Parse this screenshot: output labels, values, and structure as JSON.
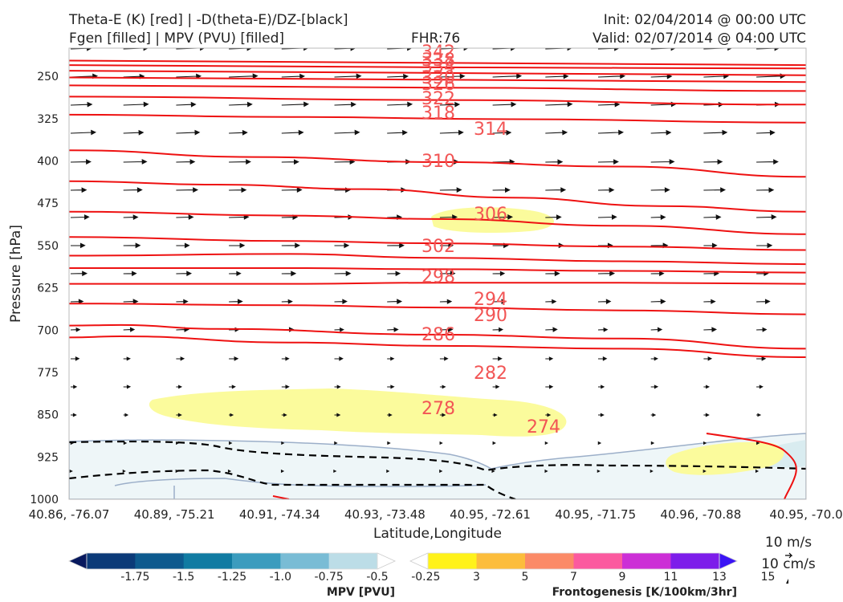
{
  "header": {
    "title_line1": "Theta-E (K) [red] | -D(theta-E)/DZ-[black]",
    "title_line2": "Fgen [filled] | MPV (PVU) [filled]",
    "fhr": "FHR:76",
    "init": "Init: 02/04/2014 @ 00:00 UTC",
    "valid": "Valid: 02/07/2014 @ 04:00 UTC"
  },
  "chart_data": {
    "type": "cross-section",
    "xlabel": "Latitude,Longitude",
    "ylabel": "Pressure [hPa]",
    "x_ticks": [
      "40.86, -76.07",
      "40.89, -75.21",
      "40.91, -74.34",
      "40.93, -73.48",
      "40.95, -72.61",
      "40.95, -71.75",
      "40.96, -70.88",
      "40.95, -70.0"
    ],
    "y_ticks": [
      250,
      325,
      400,
      475,
      550,
      625,
      700,
      775,
      850,
      925,
      1000
    ],
    "ylim": [
      200,
      1000
    ],
    "y_inverted": true,
    "grid": false,
    "theta_e_contours": [
      {
        "label": "314",
        "points": [
          [
            0,
            318
          ],
          [
            0.3,
            322
          ],
          [
            0.6,
            326
          ],
          [
            1,
            332
          ]
        ]
      },
      {
        "label": "310",
        "points": [
          [
            0,
            381
          ],
          [
            0.25,
            393
          ],
          [
            0.5,
            402
          ],
          [
            0.75,
            410
          ],
          [
            1,
            428
          ]
        ]
      },
      {
        "label": "306",
        "points": [
          [
            0,
            436
          ],
          [
            0.2,
            442
          ],
          [
            0.4,
            450
          ],
          [
            0.6,
            465
          ],
          [
            0.8,
            480
          ],
          [
            1,
            490
          ]
        ]
      },
      {
        "label": "302",
        "points": [
          [
            0,
            490
          ],
          [
            0.3,
            497
          ],
          [
            0.5,
            503
          ],
          [
            0.75,
            515
          ],
          [
            1,
            530
          ]
        ]
      },
      {
        "label": "298",
        "points": [
          [
            0,
            535
          ],
          [
            0.3,
            542
          ],
          [
            0.5,
            546
          ],
          [
            0.75,
            552
          ],
          [
            1,
            558
          ]
        ]
      },
      {
        "label": "294",
        "points": [
          [
            0,
            568
          ],
          [
            0.3,
            565
          ],
          [
            0.5,
            572
          ],
          [
            0.75,
            578
          ],
          [
            1,
            583
          ]
        ]
      },
      {
        "label": "290",
        "points": [
          [
            0,
            590
          ],
          [
            0.3,
            590
          ],
          [
            0.5,
            592
          ],
          [
            0.75,
            595
          ],
          [
            1,
            598
          ]
        ]
      },
      {
        "label": "286",
        "points": [
          [
            0,
            618
          ],
          [
            0.3,
            618
          ],
          [
            0.5,
            616
          ],
          [
            0.75,
            616
          ],
          [
            1,
            618
          ]
        ]
      },
      {
        "label": "282",
        "points": [
          [
            0,
            653
          ],
          [
            0.3,
            656
          ],
          [
            0.5,
            660
          ],
          [
            0.75,
            665
          ],
          [
            1,
            672
          ]
        ]
      },
      {
        "label": "278",
        "points": [
          [
            0,
            692
          ],
          [
            0.07,
            691
          ],
          [
            0.2,
            698
          ],
          [
            0.5,
            708
          ],
          [
            0.75,
            715
          ],
          [
            1,
            733
          ]
        ]
      },
      {
        "label": "274",
        "points": [
          [
            0,
            713
          ],
          [
            0.07,
            711
          ],
          [
            0.3,
            722
          ],
          [
            0.5,
            728
          ],
          [
            0.75,
            733
          ],
          [
            1,
            748
          ]
        ]
      }
    ],
    "theta_e_labels": [
      "318",
      "314",
      "310",
      "306",
      "302",
      "298",
      "294",
      "290",
      "286",
      "282",
      "278",
      "274"
    ],
    "theta_e_upper_labels": [
      "322",
      "326",
      "330",
      "334",
      "338",
      "342"
    ],
    "mpv_colorbar": {
      "label": "MPV [PVU]",
      "ticks": [
        "-1.75",
        "-1.5",
        "-1.25",
        "-1.0",
        "-0.75",
        "-0.5",
        "-0.25"
      ],
      "colors": [
        "#08195e",
        "#0b3a78",
        "#0d5a8e",
        "#107ba2",
        "#3b9cbe",
        "#79bcd5",
        "#bcdde7",
        "#ffffff"
      ]
    },
    "fgen_colorbar": {
      "label": "Frontogenesis [K/100km/3hr]",
      "ticks": [
        "3",
        "5",
        "7",
        "9",
        "11",
        "13",
        "15"
      ],
      "colors": [
        "#ffffff",
        "#fff21a",
        "#fcbd3c",
        "#fb8a67",
        "#fb5a9f",
        "#cc2fd6",
        "#7d1dea",
        "#3b14f5"
      ]
    },
    "vector_key": {
      "horizontal": "10 m/s",
      "vertical": "10 cm/s"
    }
  },
  "colors": {
    "theta_e": "#ee1111",
    "theta_e_label": "#f25555",
    "dthetae_dz": "#000000",
    "mpv_fill": "#eef6f8",
    "mpv_edge": "#9cafc9",
    "fgen_fill": "#fbfb9c"
  }
}
